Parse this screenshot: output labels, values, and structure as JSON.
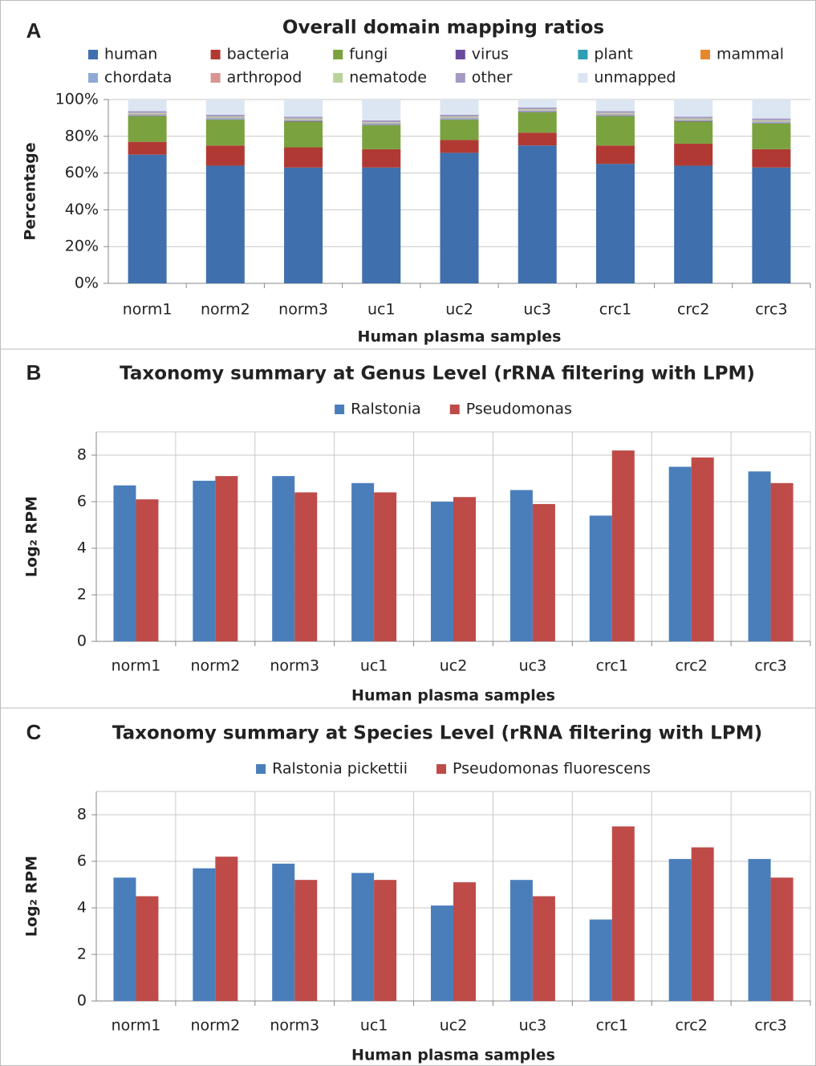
{
  "chart_data": [
    {
      "type": "bar",
      "stacked": true,
      "panel": "A",
      "title": "Overall domain mapping ratios",
      "x_label": "Human plasma samples",
      "y_label": "Percentage",
      "categories": [
        "norm1",
        "norm2",
        "norm3",
        "uc1",
        "uc2",
        "uc3",
        "crc1",
        "crc2",
        "crc3"
      ],
      "series": [
        {
          "name": "human",
          "color": "#3f6fad",
          "values": [
            70,
            64,
            63,
            63,
            71,
            75,
            65,
            64,
            63
          ]
        },
        {
          "name": "bacteria",
          "color": "#b03a33",
          "values": [
            7,
            11,
            11,
            10,
            7,
            7,
            10,
            12,
            10
          ]
        },
        {
          "name": "fungi",
          "color": "#7aa23f",
          "values": [
            14,
            14,
            14,
            13,
            11,
            11,
            16,
            12,
            14
          ]
        },
        {
          "name": "virus",
          "color": "#6a4a9c",
          "values": [
            0.2,
            0.2,
            0.2,
            0.2,
            0.2,
            0.2,
            0.2,
            0.2,
            0.2
          ]
        },
        {
          "name": "plant",
          "color": "#2e9eb5",
          "values": [
            0.1,
            0.1,
            0.1,
            0.1,
            0.1,
            0.1,
            0.1,
            0.1,
            0.1
          ]
        },
        {
          "name": "mammal",
          "color": "#e8872a",
          "values": [
            0.1,
            0.1,
            0.1,
            0.1,
            0.1,
            0.1,
            0.1,
            0.1,
            0.1
          ]
        },
        {
          "name": "chordata",
          "color": "#8fa9d6",
          "values": [
            0.5,
            0.5,
            0.5,
            0.5,
            0.5,
            0.5,
            0.5,
            0.5,
            0.5
          ]
        },
        {
          "name": "arthropod",
          "color": "#d99593",
          "values": [
            0.3,
            0.3,
            0.3,
            0.3,
            0.3,
            0.3,
            0.3,
            0.3,
            0.3
          ]
        },
        {
          "name": "nematode",
          "color": "#b8d49a",
          "values": [
            0.5,
            0.5,
            0.5,
            0.5,
            0.5,
            0.5,
            0.5,
            0.5,
            0.5
          ]
        },
        {
          "name": "other",
          "color": "#a599c4",
          "values": [
            1,
            1,
            1,
            1,
            1,
            1,
            1,
            1,
            1
          ]
        },
        {
          "name": "unmapped",
          "color": "#dce6f2",
          "values": [
            6.3,
            8.3,
            9.3,
            11.3,
            8.3,
            4.3,
            6.3,
            9.3,
            10.3
          ]
        }
      ],
      "ylim": [
        0,
        100
      ],
      "yticks": [
        {
          "value": 0,
          "label": "0%"
        },
        {
          "value": 20,
          "label": "20%"
        },
        {
          "value": 40,
          "label": "40%"
        },
        {
          "value": 60,
          "label": "60%"
        },
        {
          "value": 80,
          "label": "80%"
        },
        {
          "value": 100,
          "label": "100%"
        }
      ],
      "grid": true,
      "vgrid": false
    },
    {
      "type": "bar",
      "stacked": false,
      "panel": "B",
      "title": "Taxonomy summary at Genus Level (rRNA filtering with LPM)",
      "x_label": "Human plasma samples",
      "y_label": "Log₂ RPM",
      "categories": [
        "norm1",
        "norm2",
        "norm3",
        "uc1",
        "uc2",
        "uc3",
        "crc1",
        "crc2",
        "crc3"
      ],
      "series": [
        {
          "name": "Ralstonia",
          "color": "#4a7ebb",
          "values": [
            6.7,
            6.9,
            7.1,
            6.8,
            6.0,
            6.5,
            5.4,
            7.5,
            7.3
          ]
        },
        {
          "name": "Pseudomonas",
          "color": "#be4b48",
          "values": [
            6.1,
            7.1,
            6.4,
            6.4,
            6.2,
            5.9,
            8.2,
            7.9,
            6.8
          ]
        }
      ],
      "ylim": [
        0,
        9
      ],
      "yticks": [
        0,
        2,
        4,
        6,
        8
      ],
      "grid": true,
      "vgrid": true
    },
    {
      "type": "bar",
      "stacked": false,
      "panel": "C",
      "title": "Taxonomy summary at Species Level (rRNA filtering with LPM)",
      "x_label": "Human plasma samples",
      "y_label": "Log₂ RPM",
      "categories": [
        "norm1",
        "norm2",
        "norm3",
        "uc1",
        "uc2",
        "uc3",
        "crc1",
        "crc2",
        "crc3"
      ],
      "series": [
        {
          "name": "Ralstonia pickettii",
          "color": "#4a7ebb",
          "values": [
            5.3,
            5.7,
            5.9,
            5.5,
            4.1,
            5.2,
            3.5,
            6.1,
            6.1
          ]
        },
        {
          "name": "Pseudomonas fluorescens",
          "color": "#be4b48",
          "values": [
            4.5,
            6.2,
            5.2,
            5.2,
            5.1,
            4.5,
            7.5,
            6.6,
            5.3
          ]
        }
      ],
      "ylim": [
        0,
        9
      ],
      "yticks": [
        0,
        2,
        4,
        6,
        8
      ],
      "grid": true,
      "vgrid": true
    }
  ]
}
